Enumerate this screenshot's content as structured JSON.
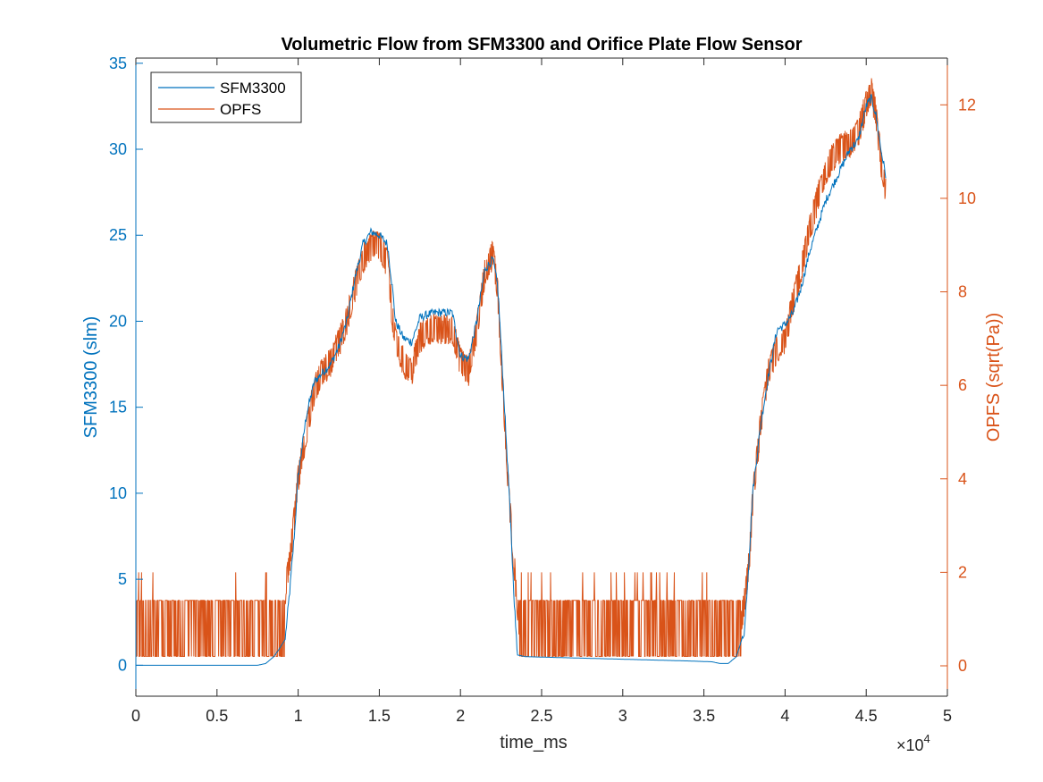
{
  "chart_data": {
    "type": "line",
    "title": "Volumetric Flow from SFM3300 and Orifice Plate Flow Sensor",
    "xlabel": "time_ms",
    "x_exponent_label": "×10",
    "x_exponent_power": "4",
    "x_scale_factor": 10000,
    "xlim": [
      0,
      50000
    ],
    "x_ticks": [
      0,
      5000,
      10000,
      15000,
      20000,
      25000,
      30000,
      35000,
      40000,
      45000,
      50000
    ],
    "x_tick_labels": [
      "0",
      "0.5",
      "1",
      "1.5",
      "2",
      "2.5",
      "3",
      "3.5",
      "4",
      "4.5",
      "5"
    ],
    "left_axis": {
      "label": "SFM3300 (slm)",
      "ylim": [
        -1.8,
        35.3
      ],
      "ticks": [
        0,
        5,
        10,
        15,
        20,
        25,
        30,
        35
      ],
      "tick_labels": [
        "0",
        "5",
        "10",
        "15",
        "20",
        "25",
        "30",
        "35"
      ],
      "color": "#0072BD"
    },
    "right_axis": {
      "label": "OPFS (sqrt(Pa))",
      "ylim": [
        -0.65,
        13.0
      ],
      "ticks": [
        0,
        2,
        4,
        6,
        8,
        10,
        12
      ],
      "tick_labels": [
        "0",
        "2",
        "4",
        "6",
        "8",
        "10",
        "12"
      ],
      "color": "#D95319"
    },
    "legend": {
      "position": "top-left"
    },
    "grid": false,
    "series": [
      {
        "name": "SFM3300",
        "axis": "left",
        "color": "#0072BD",
        "x": [
          0,
          2000,
          4000,
          6000,
          7500,
          8000,
          8500,
          8800,
          9200,
          9500,
          9800,
          10000,
          10500,
          11000,
          11500,
          12000,
          12500,
          13000,
          13500,
          14000,
          14500,
          15000,
          15500,
          15800,
          16000,
          16500,
          17000,
          17500,
          18000,
          18500,
          19000,
          19500,
          20000,
          20500,
          21000,
          21500,
          22000,
          22300,
          22600,
          23000,
          23300,
          23500,
          24000,
          26000,
          28000,
          30000,
          32000,
          34000,
          35500,
          36000,
          36500,
          37000,
          37500,
          37800,
          38000,
          38500,
          39000,
          39500,
          40000,
          40500,
          41000,
          41500,
          42000,
          42500,
          43000,
          43500,
          44000,
          44500,
          45000,
          45300,
          45600,
          45900,
          46200
        ],
        "y": [
          0.0,
          0.0,
          0.0,
          0.0,
          0.0,
          0.1,
          0.5,
          0.9,
          1.5,
          4.5,
          8.0,
          11.0,
          14.5,
          16.5,
          17.0,
          17.5,
          18.5,
          20.0,
          22.5,
          24.5,
          25.2,
          25.0,
          24.5,
          22.0,
          20.0,
          19.0,
          18.8,
          20.2,
          20.4,
          20.5,
          20.5,
          20.5,
          18.0,
          17.8,
          20.0,
          23.0,
          23.6,
          22.0,
          17.0,
          10.0,
          4.0,
          0.6,
          0.5,
          0.45,
          0.4,
          0.35,
          0.3,
          0.25,
          0.2,
          0.1,
          0.1,
          0.5,
          2.0,
          6.5,
          10.0,
          14.0,
          17.0,
          19.5,
          19.8,
          20.5,
          22.0,
          24.0,
          25.5,
          27.0,
          28.0,
          29.0,
          30.0,
          30.5,
          32.5,
          33.0,
          32.0,
          30.0,
          28.5
        ]
      },
      {
        "name": "OPFS",
        "axis": "right",
        "color": "#D95319",
        "x": [
          0,
          9200,
          9500,
          9800,
          10000,
          10500,
          11000,
          11500,
          12000,
          12500,
          13000,
          13500,
          14000,
          14500,
          15000,
          15500,
          15800,
          16000,
          16500,
          17000,
          17500,
          18000,
          18500,
          19000,
          19500,
          20000,
          20500,
          21000,
          21500,
          22000,
          22300,
          22600,
          23000,
          23300,
          23500,
          23600,
          37300,
          37500,
          37800,
          38000,
          38500,
          39000,
          39500,
          40000,
          40500,
          41000,
          41500,
          42000,
          42500,
          43000,
          43500,
          44000,
          44500,
          45000,
          45300,
          45600,
          45900,
          46200
        ],
        "y": [
          0.9,
          1.6,
          2.3,
          3.3,
          4.0,
          5.0,
          5.9,
          6.3,
          6.5,
          6.9,
          7.4,
          8.1,
          8.7,
          9.0,
          9.0,
          8.6,
          7.5,
          7.0,
          6.5,
          6.3,
          7.0,
          7.2,
          7.2,
          7.2,
          7.2,
          6.5,
          6.3,
          7.2,
          8.4,
          8.8,
          8.0,
          6.0,
          3.5,
          2.2,
          1.3,
          0.9,
          0.9,
          1.4,
          2.3,
          3.5,
          5.2,
          6.3,
          6.8,
          7.0,
          7.8,
          8.5,
          9.3,
          10.0,
          10.6,
          10.9,
          11.1,
          11.2,
          11.4,
          12.0,
          12.3,
          11.8,
          10.8,
          10.2
        ]
      }
    ]
  }
}
